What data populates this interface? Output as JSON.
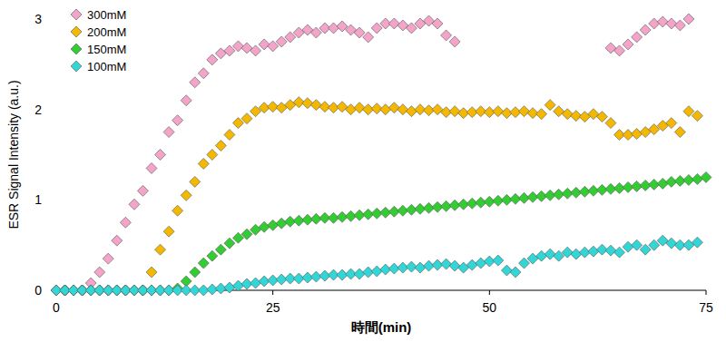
{
  "chart_data": {
    "type": "scatter",
    "x_label": "時間(min)",
    "y_label": "ESR Signal Intensity (a.u.)",
    "x": [
      0,
      1,
      2,
      3,
      4,
      5,
      6,
      7,
      8,
      9,
      10,
      11,
      12,
      13,
      14,
      15,
      16,
      17,
      18,
      19,
      20,
      21,
      22,
      23,
      24,
      25,
      26,
      27,
      28,
      29,
      30,
      31,
      32,
      33,
      34,
      35,
      36,
      37,
      38,
      39,
      40,
      41,
      42,
      43,
      44,
      45,
      46,
      47,
      48,
      49,
      50,
      51,
      52,
      53,
      54,
      55,
      56,
      57,
      58,
      59,
      60,
      61,
      62,
      63,
      64,
      65,
      66,
      67,
      68,
      69,
      70,
      71,
      72,
      73,
      74,
      75
    ],
    "xlim": [
      0,
      75
    ],
    "xticks": [
      0,
      25,
      50,
      75
    ],
    "ylim": [
      0,
      3
    ],
    "yticks": [
      0,
      1,
      2,
      3
    ],
    "grid": false,
    "legend": "upper-left",
    "marker": "diamond",
    "series": [
      {
        "name": "300mM",
        "color": "#f4a3c9",
        "values": [
          0,
          0,
          0,
          0,
          0.08,
          0.2,
          0.35,
          0.55,
          0.75,
          0.95,
          1.1,
          1.35,
          1.5,
          1.75,
          1.88,
          2.1,
          2.3,
          2.4,
          2.55,
          2.62,
          2.65,
          2.7,
          2.68,
          2.65,
          2.72,
          2.7,
          2.75,
          2.8,
          2.85,
          2.88,
          2.85,
          2.9,
          2.9,
          2.92,
          2.88,
          2.85,
          2.8,
          2.9,
          2.95,
          2.95,
          2.93,
          2.9,
          2.95,
          2.98,
          2.95,
          2.82,
          2.75,
          null,
          null,
          null,
          null,
          null,
          null,
          null,
          null,
          null,
          null,
          null,
          null,
          null,
          null,
          null,
          null,
          null,
          2.68,
          2.65,
          2.72,
          2.8,
          2.88,
          2.95,
          2.97,
          2.95,
          2.93,
          3.0,
          null,
          null
        ]
      },
      {
        "name": "200mM",
        "color": "#f5b800",
        "values": [
          0,
          0,
          0,
          0,
          0,
          0,
          0,
          0,
          0,
          0,
          0,
          0.2,
          0.45,
          0.65,
          0.88,
          1.05,
          1.2,
          1.4,
          1.5,
          1.6,
          1.72,
          1.85,
          1.9,
          1.98,
          2.02,
          2.03,
          2.02,
          2.05,
          2.08,
          2.07,
          2.05,
          2.03,
          2.02,
          2.03,
          2.0,
          2.02,
          2.0,
          2.01,
          2.0,
          2.02,
          2.0,
          1.98,
          2.0,
          1.99,
          2.0,
          1.97,
          1.98,
          1.96,
          1.97,
          1.98,
          1.97,
          1.98,
          1.96,
          1.97,
          1.98,
          1.96,
          1.95,
          2.05,
          1.98,
          1.95,
          1.93,
          1.92,
          1.95,
          1.92,
          1.85,
          1.72,
          1.72,
          1.73,
          1.75,
          1.78,
          1.82,
          1.85,
          1.75,
          1.98,
          1.93,
          null
        ]
      },
      {
        "name": "150mM",
        "color": "#33cc33",
        "values": [
          0,
          0,
          0,
          0,
          0,
          0,
          0,
          0,
          0,
          0,
          0,
          0,
          0,
          0,
          0.02,
          0.1,
          0.2,
          0.3,
          0.38,
          0.45,
          0.52,
          0.58,
          0.62,
          0.67,
          0.7,
          0.72,
          0.74,
          0.76,
          0.77,
          0.78,
          0.79,
          0.8,
          0.8,
          0.81,
          0.82,
          0.83,
          0.84,
          0.85,
          0.86,
          0.87,
          0.88,
          0.89,
          0.9,
          0.91,
          0.92,
          0.93,
          0.94,
          0.95,
          0.96,
          0.97,
          0.98,
          0.99,
          1.0,
          1.01,
          1.02,
          1.03,
          1.04,
          1.05,
          1.06,
          1.07,
          1.08,
          1.09,
          1.1,
          1.11,
          1.12,
          1.13,
          1.14,
          1.15,
          1.16,
          1.17,
          1.18,
          1.2,
          1.21,
          1.22,
          1.23,
          1.25
        ]
      },
      {
        "name": "100mM",
        "color": "#33d6d6",
        "values": [
          0,
          0,
          0,
          0,
          0,
          0,
          0,
          0,
          0,
          0,
          0,
          0,
          0,
          0,
          0,
          0,
          0,
          0,
          0.01,
          0.02,
          0.03,
          0.05,
          0.07,
          0.08,
          0.1,
          0.11,
          0.12,
          0.13,
          0.13,
          0.14,
          0.15,
          0.16,
          0.17,
          0.17,
          0.18,
          0.18,
          0.2,
          0.21,
          0.23,
          0.24,
          0.25,
          0.26,
          0.25,
          0.27,
          0.28,
          0.29,
          0.27,
          0.25,
          0.28,
          0.3,
          0.32,
          0.33,
          0.22,
          0.2,
          0.3,
          0.35,
          0.38,
          0.4,
          0.38,
          0.42,
          0.4,
          0.42,
          0.43,
          0.45,
          0.44,
          0.42,
          0.48,
          0.5,
          0.45,
          0.5,
          0.55,
          0.52,
          0.5,
          0.5,
          0.53,
          null
        ]
      }
    ]
  }
}
